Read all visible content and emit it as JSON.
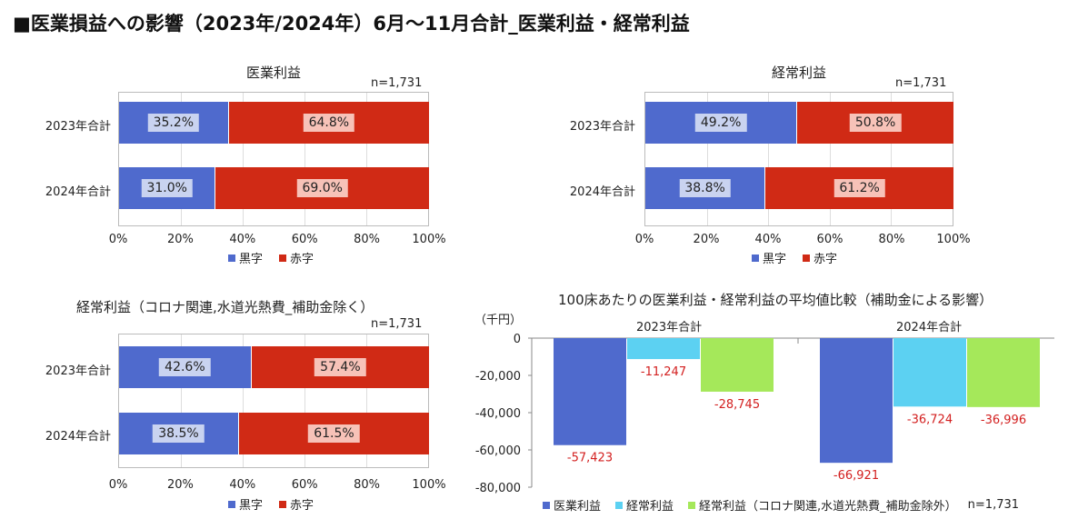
{
  "main_title": "■医業損益への影響（2023年/2024年）6月～11月合計_医業利益・経常利益",
  "colors": {
    "blue": "#4f6acd",
    "red": "#d02a15",
    "cyan": "#5cd1f2",
    "green": "#a5e85a",
    "neg_label": "#d32020"
  },
  "chart_data": [
    {
      "type": "bar",
      "orientation": "horizontal-stacked-100",
      "title": "医業利益",
      "note": "n=1,731",
      "categories": [
        "2023年合計",
        "2024年合計"
      ],
      "series": [
        {
          "name": "黒字",
          "values": [
            35.2,
            31.0
          ],
          "labels": [
            "35.2%",
            "31.0%"
          ]
        },
        {
          "name": "赤字",
          "values": [
            64.8,
            69.0
          ],
          "labels": [
            "64.8%",
            "69.0%"
          ]
        }
      ],
      "xticks": [
        "0%",
        "20%",
        "40%",
        "60%",
        "80%",
        "100%"
      ],
      "xlim": [
        0,
        100
      ],
      "legend": [
        "黒字",
        "赤字"
      ]
    },
    {
      "type": "bar",
      "orientation": "horizontal-stacked-100",
      "title": "経常利益",
      "note": "n=1,731",
      "categories": [
        "2023年合計",
        "2024年合計"
      ],
      "series": [
        {
          "name": "黒字",
          "values": [
            49.2,
            38.8
          ],
          "labels": [
            "49.2%",
            "38.8%"
          ]
        },
        {
          "name": "赤字",
          "values": [
            50.8,
            61.2
          ],
          "labels": [
            "50.8%",
            "61.2%"
          ]
        }
      ],
      "xticks": [
        "0%",
        "20%",
        "40%",
        "60%",
        "80%",
        "100%"
      ],
      "xlim": [
        0,
        100
      ],
      "legend": [
        "黒字",
        "赤字"
      ]
    },
    {
      "type": "bar",
      "orientation": "horizontal-stacked-100",
      "title": "経常利益（コロナ関連,水道光熱費_補助金除く）",
      "note": "n=1,731",
      "categories": [
        "2023年合計",
        "2024年合計"
      ],
      "series": [
        {
          "name": "黒字",
          "values": [
            42.6,
            38.5
          ],
          "labels": [
            "42.6%",
            "38.5%"
          ]
        },
        {
          "name": "赤字",
          "values": [
            57.4,
            61.5
          ],
          "labels": [
            "57.4%",
            "61.5%"
          ]
        }
      ],
      "xticks": [
        "0%",
        "20%",
        "40%",
        "60%",
        "80%",
        "100%"
      ],
      "xlim": [
        0,
        100
      ],
      "legend": [
        "黒字",
        "赤字"
      ]
    },
    {
      "type": "bar",
      "orientation": "vertical",
      "title": "100床あたりの医業利益・経常利益の平均値比較（補助金による影響）",
      "unit_label": "（千円）",
      "note": "n=1,731",
      "categories": [
        "2023年合計",
        "2024年合計"
      ],
      "series": [
        {
          "name": "医業利益",
          "values": [
            -57423,
            -66921
          ],
          "labels": [
            "-57,423",
            "-66,921"
          ]
        },
        {
          "name": "経常利益",
          "values": [
            -11247,
            -36724
          ],
          "labels": [
            "-11,247",
            "-36,724"
          ]
        },
        {
          "name": "経常利益（コロナ関連,水道光熱費_補助金除外）",
          "values": [
            -28745,
            -36996
          ],
          "labels": [
            "-28,745",
            "-36,996"
          ]
        }
      ],
      "yticks": [
        "0",
        "-20,000",
        "-40,000",
        "-60,000",
        "-80,000"
      ],
      "ylim": [
        -80000,
        0
      ]
    }
  ]
}
